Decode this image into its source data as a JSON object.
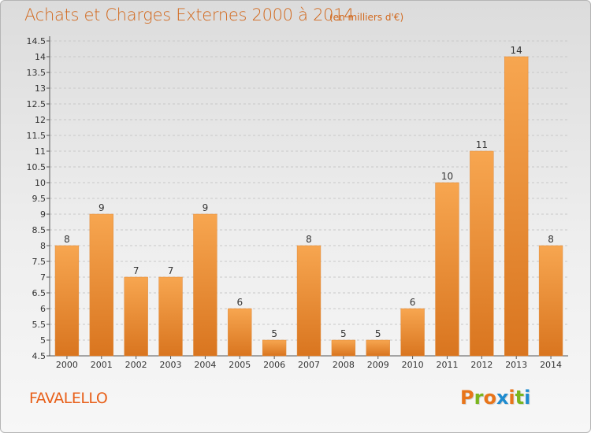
{
  "header": {
    "title": "Achats et Charges Externes 2000 à 2014",
    "subtitle": "(en milliers d'€)"
  },
  "footer": {
    "city": "FAVALELLO",
    "logo_letters": [
      "P",
      "r",
      "o",
      "x",
      "i",
      "t",
      "i"
    ],
    "logo_colors": [
      "#e8751a",
      "#7ab51d",
      "#e8751a",
      "#1e8bcf",
      "#e8751a",
      "#7ab51d",
      "#1e8bcf"
    ]
  },
  "chart_data": {
    "type": "bar",
    "title": "Achats et Charges Externes 2000 à 2014",
    "subtitle": "(en milliers d'€)",
    "xlabel": "",
    "ylabel": "",
    "categories": [
      "2000",
      "2001",
      "2002",
      "2003",
      "2004",
      "2005",
      "2006",
      "2007",
      "2008",
      "2009",
      "2010",
      "2011",
      "2012",
      "2013",
      "2014"
    ],
    "values": [
      8,
      9,
      7,
      7,
      9,
      6,
      5,
      8,
      5,
      5,
      6,
      10,
      11,
      14,
      8
    ],
    "ylim": [
      4.5,
      14.5
    ],
    "yticks": [
      "4.5",
      "5",
      "5.5",
      "6",
      "6.5",
      "7",
      "7.5",
      "8",
      "8.5",
      "9",
      "9.5",
      "10",
      "10.5",
      "11",
      "11.5",
      "12",
      "12.5",
      "13",
      "13.5",
      "14",
      "14.5"
    ],
    "grid": true,
    "legend": "none",
    "bar_color_light": "#f7a650",
    "bar_color_dark": "#d9751f"
  }
}
